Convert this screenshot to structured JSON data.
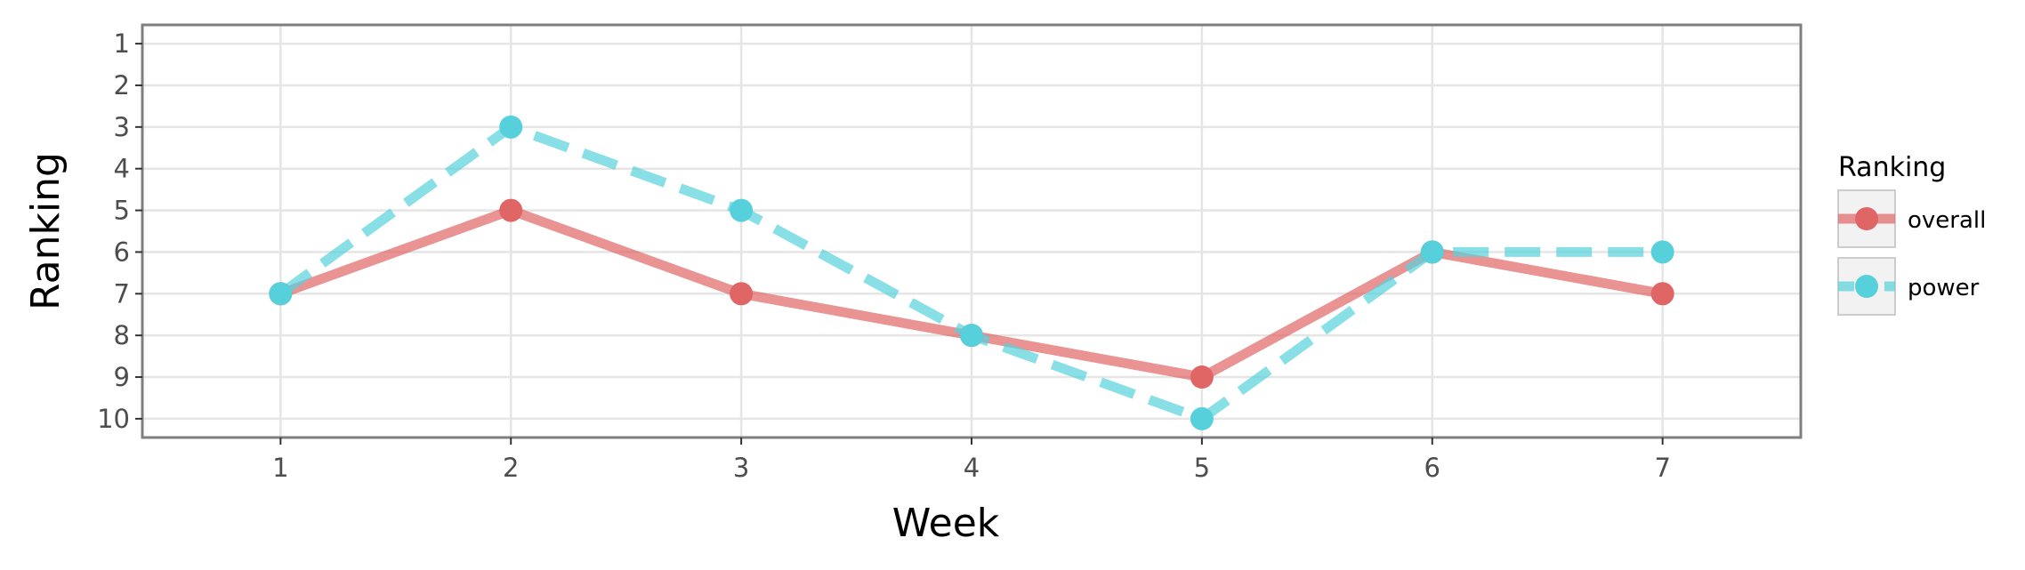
{
  "chart_data": {
    "type": "line",
    "xlabel": "Week",
    "ylabel": "Ranking",
    "x": [
      1,
      2,
      3,
      4,
      5,
      6,
      7
    ],
    "xlim": [
      0.4,
      7.6
    ],
    "ylim": [
      10.45,
      0.55
    ],
    "y_reversed": true,
    "y_ticks": [
      1,
      2,
      3,
      4,
      5,
      6,
      7,
      8,
      9,
      10
    ],
    "grid": true,
    "legend": {
      "title": "Ranking",
      "position": "right"
    },
    "series": [
      {
        "name": "overall",
        "values": [
          7,
          5,
          7,
          8,
          9,
          6,
          7
        ],
        "color": "#e06565",
        "line_style": "solid"
      },
      {
        "name": "power",
        "values": [
          7,
          3,
          5,
          8,
          10,
          6,
          6
        ],
        "color": "#56d1dc",
        "line_style": "dashed"
      }
    ]
  }
}
